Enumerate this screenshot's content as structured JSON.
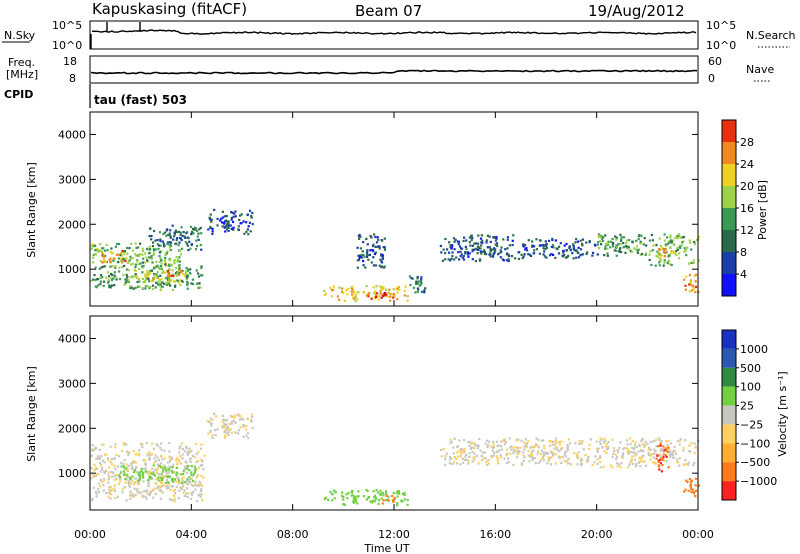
{
  "header": {
    "radar_label": "Kapuskasing (fitACF)",
    "beam_label": "Beam 07",
    "date_label": "19/Aug/2012"
  },
  "noise_panel": {
    "left_label": "N.Sky",
    "right_label": "N.Search",
    "right_ticks": [
      "10^5",
      "10^0"
    ],
    "left_ticks": [
      "10^5",
      "10^0"
    ]
  },
  "freq_panel": {
    "label_line1": "Freq.",
    "label_line2": "[MHz]",
    "left_ticks": [
      "18",
      "8"
    ],
    "right_ticks": [
      "60",
      "0"
    ],
    "right_label": "Nave"
  },
  "cpid": {
    "label": "CPID",
    "value": "tau (fast) 503"
  },
  "power_panel": {
    "ylabel": "Slant Range [km]",
    "yticks": [
      "4000",
      "3000",
      "2000",
      "1000"
    ],
    "colorbar_label": "Power [dB]",
    "colorbar_ticks": [
      "28",
      "24",
      "20",
      "16",
      "12",
      "8",
      "4"
    ]
  },
  "velocity_panel": {
    "ylabel": "Slant Range [km]",
    "yticks": [
      "4000",
      "3000",
      "2000",
      "1000"
    ],
    "colorbar_label": "Velocity [m s⁻¹]",
    "colorbar_ticks": [
      "1000",
      "500",
      "100",
      "25",
      "−25",
      "−100",
      "−500",
      "−1000"
    ]
  },
  "xaxis": {
    "xlabel": "Time UT",
    "ticks": [
      "00:00",
      "04:00",
      "08:00",
      "12:00",
      "16:00",
      "20:00",
      "00:00"
    ]
  },
  "colors": {
    "power_scale": [
      "#1010ff",
      "#1b3fa8",
      "#2a6a4a",
      "#3a9a55",
      "#9cd24a",
      "#f0d020",
      "#f08a20",
      "#e83010",
      "#d80000"
    ],
    "velocity_scale": [
      "#ff2020",
      "#ff7a1a",
      "#ffb030",
      "#ffd060",
      "#c8c8c0",
      "#70d040",
      "#2e8a3e",
      "#2a5ab0",
      "#1a30c0"
    ]
  },
  "chart_data": [
    {
      "type": "heatmap",
      "title": "Power [dB]",
      "xlabel": "Time UT",
      "ylabel": "Slant Range [km]",
      "xlim": [
        0,
        24
      ],
      "ylim": [
        180,
        4500
      ],
      "clim": [
        0,
        30
      ],
      "regions": [
        {
          "t0": 0.0,
          "t1": 3.6,
          "r0": 1050,
          "r1": 1600,
          "value": 14
        },
        {
          "t0": 0.4,
          "t1": 1.4,
          "r0": 1150,
          "r1": 1450,
          "value": 22
        },
        {
          "t0": 2.3,
          "t1": 4.4,
          "r0": 1450,
          "r1": 2000,
          "value": 9
        },
        {
          "t0": 0.0,
          "t1": 4.5,
          "r0": 550,
          "r1": 1100,
          "value": 12
        },
        {
          "t0": 1.5,
          "t1": 3.8,
          "r0": 700,
          "r1": 1050,
          "value": 18
        },
        {
          "t0": 3.0,
          "t1": 3.6,
          "r0": 800,
          "r1": 1000,
          "value": 24
        },
        {
          "t0": 4.6,
          "t1": 6.4,
          "r0": 1800,
          "r1": 2350,
          "value": 6
        },
        {
          "t0": 9.2,
          "t1": 12.5,
          "r0": 300,
          "r1": 650,
          "value": 20
        },
        {
          "t0": 10.8,
          "t1": 12.0,
          "r0": 350,
          "r1": 500,
          "value": 26
        },
        {
          "t0": 10.5,
          "t1": 11.6,
          "r0": 1050,
          "r1": 1800,
          "value": 7
        },
        {
          "t0": 12.5,
          "t1": 13.2,
          "r0": 450,
          "r1": 900,
          "value": 10
        },
        {
          "t0": 13.8,
          "t1": 16.8,
          "r0": 1200,
          "r1": 1800,
          "value": 7
        },
        {
          "t0": 16.8,
          "t1": 20.0,
          "r0": 1250,
          "r1": 1700,
          "value": 7
        },
        {
          "t0": 20.0,
          "t1": 22.0,
          "r0": 1300,
          "r1": 1800,
          "value": 12
        },
        {
          "t0": 22.0,
          "t1": 24.0,
          "r0": 1100,
          "r1": 1800,
          "value": 14
        },
        {
          "t0": 22.3,
          "t1": 23.0,
          "r0": 1250,
          "r1": 1500,
          "value": 20
        },
        {
          "t0": 23.4,
          "t1": 24.0,
          "r0": 500,
          "r1": 900,
          "value": 22
        }
      ]
    },
    {
      "type": "heatmap",
      "title": "Velocity [m s-1]",
      "xlabel": "Time UT",
      "ylabel": "Slant Range [km]",
      "xlim": [
        0,
        24
      ],
      "ylim": [
        180,
        4500
      ],
      "clim": [
        -1000,
        1000
      ],
      "regions": [
        {
          "t0": 0.0,
          "t1": 4.5,
          "r0": 400,
          "r1": 1700,
          "value": 0
        },
        {
          "t0": 1.0,
          "t1": 4.2,
          "r0": 800,
          "r1": 1200,
          "value": 60
        },
        {
          "t0": 4.6,
          "t1": 6.4,
          "r0": 1800,
          "r1": 2350,
          "value": 0
        },
        {
          "t0": 9.2,
          "t1": 12.5,
          "r0": 300,
          "r1": 650,
          "value": 60
        },
        {
          "t0": 11.5,
          "t1": 12.0,
          "r0": 350,
          "r1": 550,
          "value": -200
        },
        {
          "t0": 13.8,
          "t1": 20.0,
          "r0": 1200,
          "r1": 1800,
          "value": 0
        },
        {
          "t0": 20.0,
          "t1": 24.0,
          "r0": 1150,
          "r1": 1800,
          "value": 0
        },
        {
          "t0": 22.3,
          "t1": 22.8,
          "r0": 1050,
          "r1": 1700,
          "value": -500
        },
        {
          "t0": 23.4,
          "t1": 24.0,
          "r0": 500,
          "r1": 900,
          "value": -200
        }
      ]
    }
  ]
}
